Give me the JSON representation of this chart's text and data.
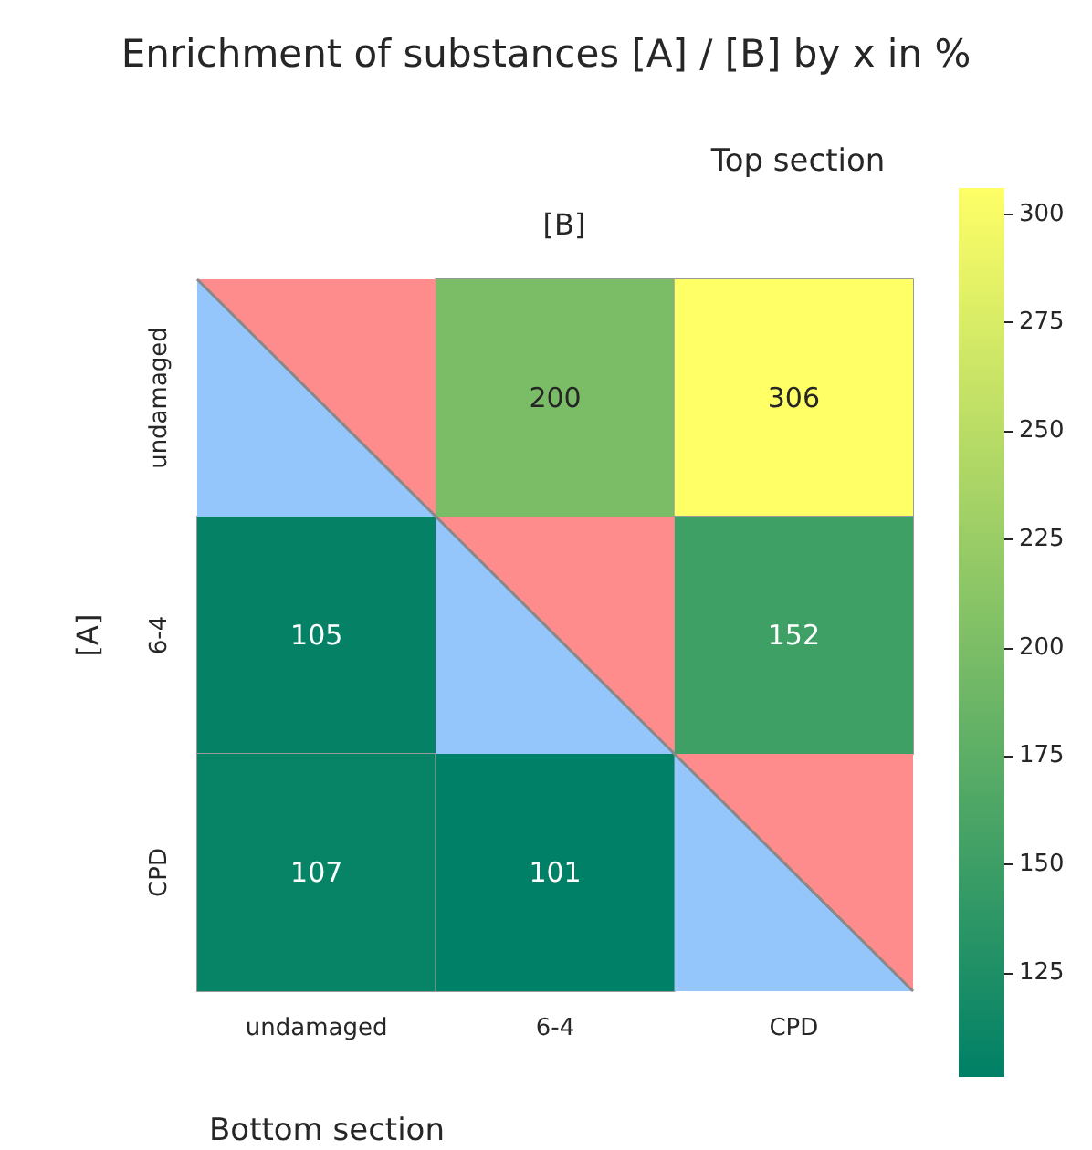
{
  "chart_data": {
    "type": "heatmap",
    "title": "Enrichment of substances [A] / [B] by x in %",
    "xlabel": "[B]",
    "ylabel": "[A]",
    "annotations": [
      "Top section",
      "Bottom section"
    ],
    "categories": [
      "undamaged",
      "6-4",
      "CPD"
    ],
    "y_categories": [
      "undamaged",
      "6-4",
      "CPD"
    ],
    "cells": [
      [
        null,
        200,
        306
      ],
      [
        105,
        null,
        152
      ],
      [
        107,
        101,
        null
      ]
    ],
    "data_labels": true,
    "clim": [
      101,
      306
    ],
    "cticks": [
      125,
      150,
      175,
      200,
      225,
      250,
      275,
      300
    ]
  }
}
